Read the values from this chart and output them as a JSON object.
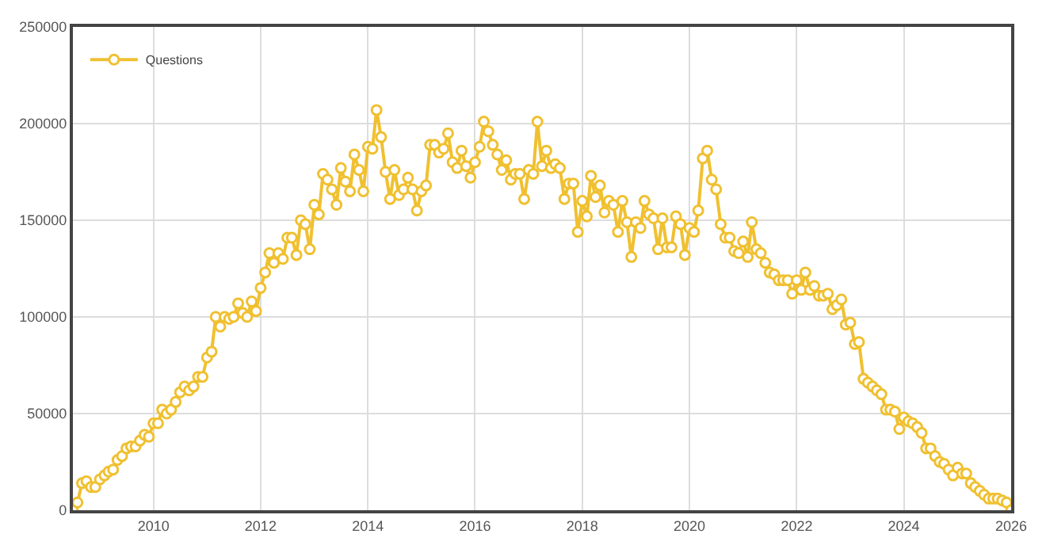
{
  "chart_data": {
    "type": "line",
    "marker": "circle",
    "line_style": "solid",
    "grid": true,
    "legend": "top left",
    "xlim": [
      "2008-07",
      "2026-01"
    ],
    "ylim": [
      0,
      250000
    ],
    "xticks": [
      {
        "value": "2010",
        "label": "2010"
      },
      {
        "value": "2012",
        "label": "2012"
      },
      {
        "value": "2014",
        "label": "2014"
      },
      {
        "value": "2016",
        "label": "2016"
      },
      {
        "value": "2018",
        "label": "2018"
      },
      {
        "value": "2020",
        "label": "2020"
      },
      {
        "value": "2022",
        "label": "2022"
      },
      {
        "value": "2024",
        "label": "2024"
      },
      {
        "value": "2026",
        "label": "2026"
      }
    ],
    "yticks": [
      0,
      50000,
      100000,
      150000,
      200000,
      250000
    ],
    "x": [
      "2008-07",
      "2008-08",
      "2008-09",
      "2008-10",
      "2008-11",
      "2008-12",
      "2009-01",
      "2009-02",
      "2009-03",
      "2009-04",
      "2009-05",
      "2009-06",
      "2009-07",
      "2009-08",
      "2009-09",
      "2009-10",
      "2009-11",
      "2009-12",
      "2010-01",
      "2010-02",
      "2010-03",
      "2010-04",
      "2010-05",
      "2010-06",
      "2010-07",
      "2010-08",
      "2010-09",
      "2010-10",
      "2010-11",
      "2010-12",
      "2011-01",
      "2011-02",
      "2011-03",
      "2011-04",
      "2011-05",
      "2011-06",
      "2011-07",
      "2011-08",
      "2011-09",
      "2011-10",
      "2011-11",
      "2011-12",
      "2012-01",
      "2012-02",
      "2012-03",
      "2012-04",
      "2012-05",
      "2012-06",
      "2012-07",
      "2012-08",
      "2012-09",
      "2012-10",
      "2012-11",
      "2012-12",
      "2013-01",
      "2013-02",
      "2013-03",
      "2013-04",
      "2013-05",
      "2013-06",
      "2013-07",
      "2013-08",
      "2013-09",
      "2013-10",
      "2013-11",
      "2013-12",
      "2014-01",
      "2014-02",
      "2014-03",
      "2014-04",
      "2014-05",
      "2014-06",
      "2014-07",
      "2014-08",
      "2014-09",
      "2014-10",
      "2014-11",
      "2014-12",
      "2015-01",
      "2015-02",
      "2015-03",
      "2015-04",
      "2015-05",
      "2015-06",
      "2015-07",
      "2015-08",
      "2015-09",
      "2015-10",
      "2015-11",
      "2015-12",
      "2016-01",
      "2016-02",
      "2016-03",
      "2016-04",
      "2016-05",
      "2016-06",
      "2016-07",
      "2016-08",
      "2016-09",
      "2016-10",
      "2016-11",
      "2016-12",
      "2017-01",
      "2017-02",
      "2017-03",
      "2017-04",
      "2017-05",
      "2017-06",
      "2017-07",
      "2017-08",
      "2017-09",
      "2017-10",
      "2017-11",
      "2017-12",
      "2018-01",
      "2018-02",
      "2018-03",
      "2018-04",
      "2018-05",
      "2018-06",
      "2018-07",
      "2018-08",
      "2018-09",
      "2018-10",
      "2018-11",
      "2018-12",
      "2019-01",
      "2019-02",
      "2019-03",
      "2019-04",
      "2019-05",
      "2019-06",
      "2019-07",
      "2019-08",
      "2019-09",
      "2019-10",
      "2019-11",
      "2019-12",
      "2020-01",
      "2020-02",
      "2020-03",
      "2020-04",
      "2020-05",
      "2020-06",
      "2020-07",
      "2020-08",
      "2020-09",
      "2020-10",
      "2020-11",
      "2020-12",
      "2021-01",
      "2021-02",
      "2021-03",
      "2021-04",
      "2021-05",
      "2021-06",
      "2021-07",
      "2021-08",
      "2021-09",
      "2021-10",
      "2021-11",
      "2021-12",
      "2022-01",
      "2022-02",
      "2022-03",
      "2022-04",
      "2022-05",
      "2022-06",
      "2022-07",
      "2022-08",
      "2022-09",
      "2022-10",
      "2022-11",
      "2022-12",
      "2023-01",
      "2023-02",
      "2023-03",
      "2023-04",
      "2023-05",
      "2023-06",
      "2023-07",
      "2023-08",
      "2023-09",
      "2023-10",
      "2023-11",
      "2023-12",
      "2024-01",
      "2024-02",
      "2024-03",
      "2024-04",
      "2024-05",
      "2024-06",
      "2024-07",
      "2024-08",
      "2024-09",
      "2024-10",
      "2024-11",
      "2024-12",
      "2025-01",
      "2025-02",
      "2025-03",
      "2025-04",
      "2025-05",
      "2025-06",
      "2025-07",
      "2025-08",
      "2025-09",
      "2025-10",
      "2025-11",
      "2025-12",
      "2026-01"
    ],
    "series": [
      {
        "name": "Questions",
        "color": "#f0c030",
        "values": [
          0,
          4000,
          14000,
          15000,
          12000,
          12000,
          16000,
          18000,
          20000,
          21000,
          26000,
          28000,
          32000,
          33000,
          33000,
          36000,
          39000,
          38000,
          45000,
          45000,
          52000,
          50000,
          52000,
          56000,
          61000,
          64000,
          62000,
          64000,
          69000,
          69000,
          79000,
          82000,
          100000,
          95000,
          100000,
          99000,
          100000,
          107000,
          102000,
          100000,
          108000,
          103000,
          115000,
          123000,
          133000,
          128000,
          133000,
          130000,
          141000,
          141000,
          132000,
          150000,
          148000,
          135000,
          158000,
          153000,
          174000,
          171000,
          166000,
          158000,
          177000,
          170000,
          165000,
          184000,
          176000,
          165000,
          188000,
          187000,
          207000,
          193000,
          175000,
          161000,
          176000,
          163000,
          166000,
          172000,
          166000,
          155000,
          165000,
          168000,
          189000,
          189000,
          185000,
          187000,
          195000,
          180000,
          177000,
          186000,
          178000,
          172000,
          180000,
          188000,
          201000,
          196000,
          189000,
          184000,
          176000,
          181000,
          171000,
          174000,
          174000,
          161000,
          176000,
          174000,
          201000,
          178000,
          186000,
          177000,
          179000,
          177000,
          161000,
          169000,
          169000,
          144000,
          160000,
          152000,
          173000,
          162000,
          168000,
          154000,
          160000,
          158000,
          144000,
          160000,
          149000,
          131000,
          149000,
          146000,
          160000,
          153000,
          151000,
          135000,
          151000,
          136000,
          136000,
          152000,
          148000,
          132000,
          146000,
          144000,
          155000,
          182000,
          186000,
          171000,
          166000,
          148000,
          141000,
          141000,
          134000,
          133000,
          139000,
          131000,
          149000,
          135000,
          133000,
          128000,
          123000,
          122000,
          119000,
          119000,
          119000,
          112000,
          119000,
          114000,
          123000,
          114000,
          116000,
          111000,
          111000,
          112000,
          104000,
          106000,
          109000,
          96000,
          97000,
          86000,
          87000,
          68000,
          66000,
          64000,
          62000,
          60000,
          52000,
          52000,
          51000,
          42000,
          48000,
          46000,
          45000,
          43000,
          40000,
          32000,
          32000,
          28000,
          25000,
          24000,
          21000,
          18000,
          22000,
          19000,
          19000,
          14000,
          12000,
          10000,
          8000,
          6000,
          6000,
          6000,
          5000,
          4000,
          0
        ]
      }
    ]
  }
}
